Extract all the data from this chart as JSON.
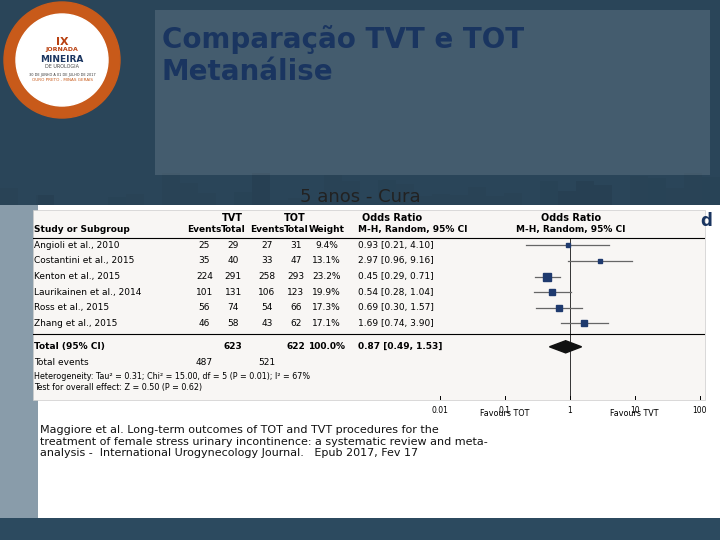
{
  "title_line1": "Comparação TVT e TOT",
  "title_line2": "Metanálise",
  "subtitle": "5 anos - Cura",
  "studies": [
    {
      "name": "Angioli et al., 2010",
      "tvt_e": 25,
      "tvt_t": 29,
      "tot_e": 27,
      "tot_t": 31,
      "weight": "9.4%",
      "or_text": "0.93 [0.21, 4.10]",
      "or": 0.93,
      "ci_lo": 0.21,
      "ci_hi": 4.1
    },
    {
      "name": "Costantini et al., 2015",
      "tvt_e": 35,
      "tvt_t": 40,
      "tot_e": 33,
      "tot_t": 47,
      "weight": "13.1%",
      "or_text": "2.97 [0.96, 9.16]",
      "or": 2.97,
      "ci_lo": 0.96,
      "ci_hi": 9.16
    },
    {
      "name": "Kenton et al., 2015",
      "tvt_e": 224,
      "tvt_t": 291,
      "tot_e": 258,
      "tot_t": 293,
      "weight": "23.2%",
      "or_text": "0.45 [0.29, 0.71]",
      "or": 0.45,
      "ci_lo": 0.29,
      "ci_hi": 0.71
    },
    {
      "name": "Laurikainen et al., 2014",
      "tvt_e": 101,
      "tvt_t": 131,
      "tot_e": 106,
      "tot_t": 123,
      "weight": "19.9%",
      "or_text": "0.54 [0.28, 1.04]",
      "or": 0.54,
      "ci_lo": 0.28,
      "ci_hi": 1.04
    },
    {
      "name": "Ross et al., 2015",
      "tvt_e": 56,
      "tvt_t": 74,
      "tot_e": 54,
      "tot_t": 66,
      "weight": "17.3%",
      "or_text": "0.69 [0.30, 1.57]",
      "or": 0.69,
      "ci_lo": 0.3,
      "ci_hi": 1.57
    },
    {
      "name": "Zhang et al., 2015",
      "tvt_e": 46,
      "tvt_t": 58,
      "tot_e": 43,
      "tot_t": 62,
      "weight": "17.1%",
      "or_text": "1.69 [0.74, 3.90]",
      "or": 1.69,
      "ci_lo": 0.74,
      "ci_hi": 3.9
    }
  ],
  "total_tvt": 623,
  "total_tot": 622,
  "total_events_tvt": 487,
  "total_events_tot": 521,
  "total_or_text": "0.87 [0.49, 1.53]",
  "total_or": 0.87,
  "total_ci_lo": 0.49,
  "total_ci_hi": 1.53,
  "heterogeneity_text": "Heterogeneity: Tau² = 0.31; Chi² = 15.00, df = 5 (P = 0.01); I² = 67%",
  "overall_effect_text": "Test for overall effect: Z = 0.50 (P = 0.62)",
  "forest_xticks": [
    0.01,
    0.1,
    1,
    10,
    100
  ],
  "forest_xtick_labels": [
    "0.01",
    "0.1",
    "1",
    "10",
    "100"
  ],
  "favours_left": "Favours TOT",
  "favours_right": "Favours TVT",
  "label_d": "d",
  "reference_text": "Maggiore et al. Long-term outcomes of TOT and TVT procedures for the\ntreatment of female stress urinary incontinence: a systematic review and meta-\nanalysis -  International Urogynecology Journal.   Epub 2017, Fev 17",
  "top_bg_color": "#3a5a72",
  "top_bg_color2": "#2a3f50",
  "white_box_color": "#f0eeec",
  "title_color": "#1a3560",
  "subtitle_color": "#222222",
  "point_color": "#1f3a6e",
  "line_color": "#666666",
  "text_color": "#000000",
  "ref_text_color": "#111111",
  "bottom_strip_color": "#2c4a5f",
  "left_strip_color": "#3a5a72"
}
